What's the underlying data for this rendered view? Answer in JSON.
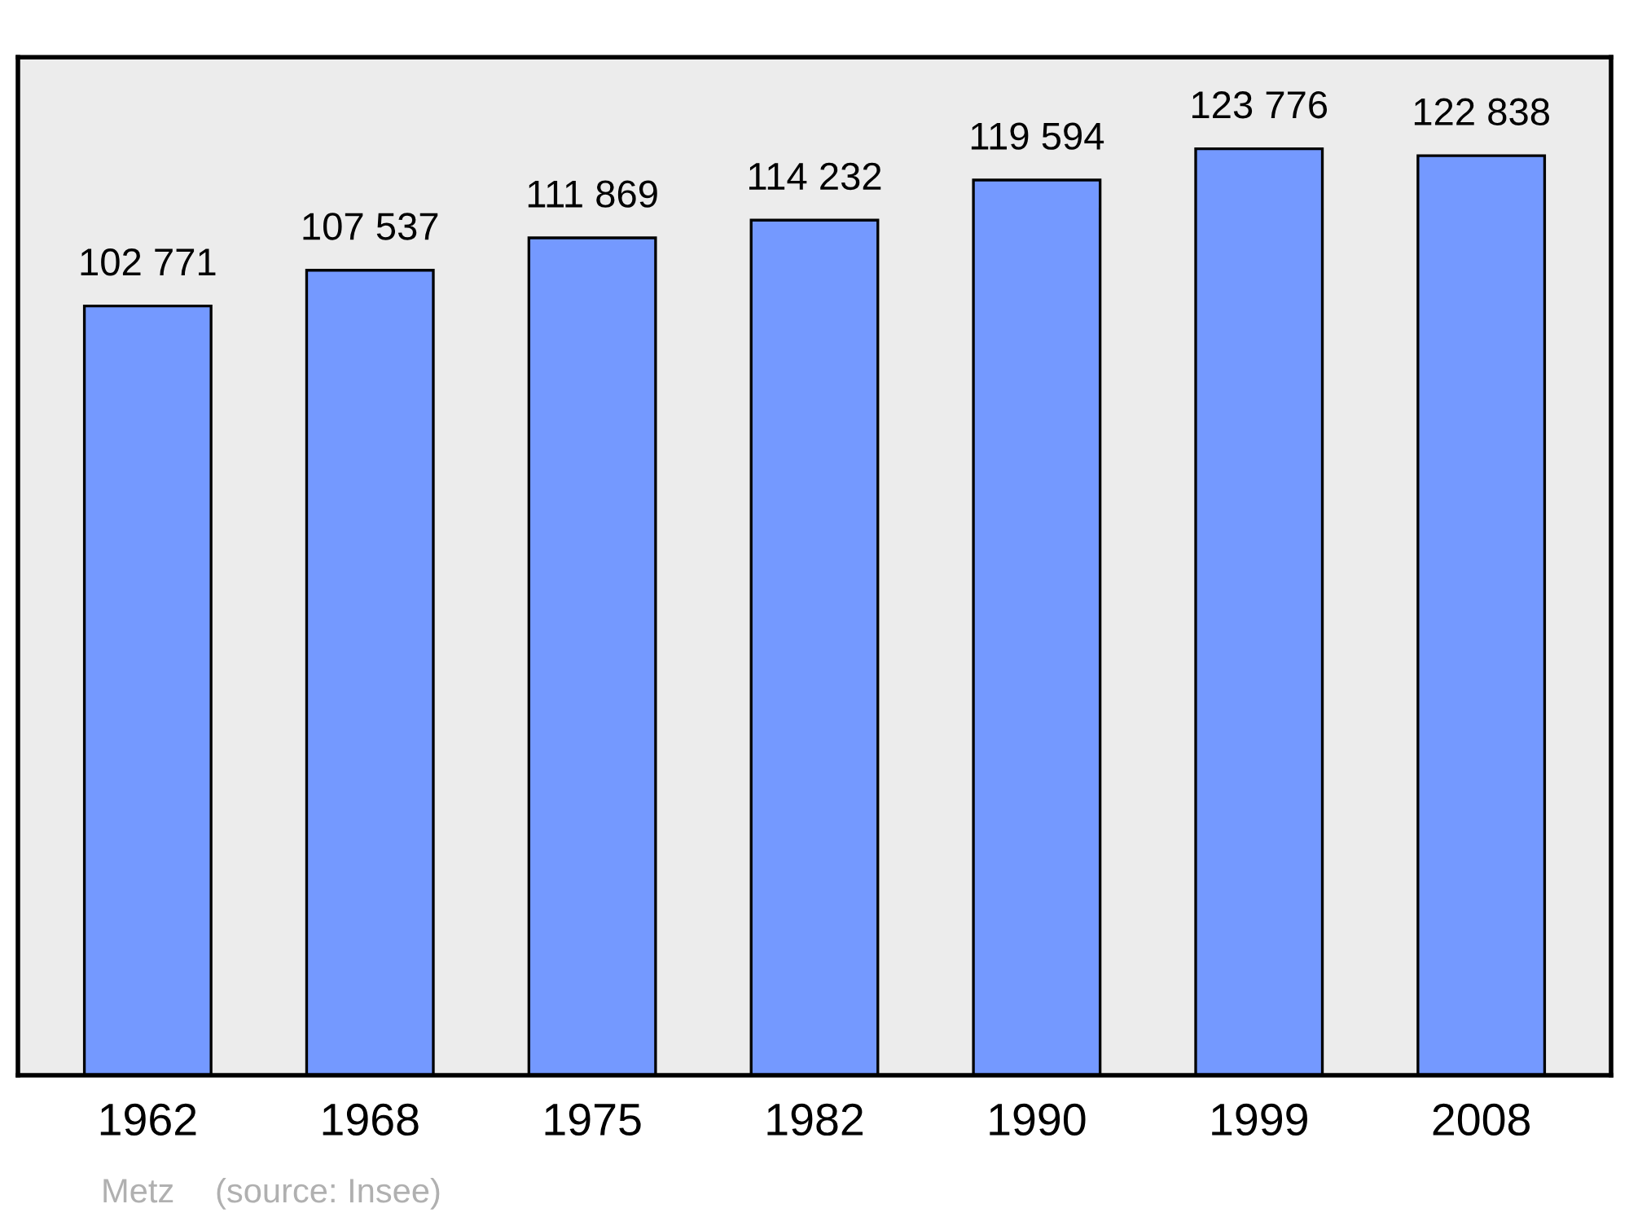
{
  "chart_data": {
    "type": "bar",
    "categories": [
      "1962",
      "1968",
      "1975",
      "1982",
      "1990",
      "1999",
      "2008"
    ],
    "values": [
      102771,
      107537,
      111869,
      114232,
      119594,
      123776,
      122838
    ],
    "value_labels": [
      "102 771",
      "107 537",
      "111 869",
      "114 232",
      "119 594",
      "123 776",
      "122 838"
    ],
    "color": "#7499ff",
    "ylim": [
      0,
      136000
    ],
    "grid": false,
    "legend": false,
    "tick_labels": "x",
    "annotations": [
      "Metz",
      "(source: Insee)"
    ]
  }
}
